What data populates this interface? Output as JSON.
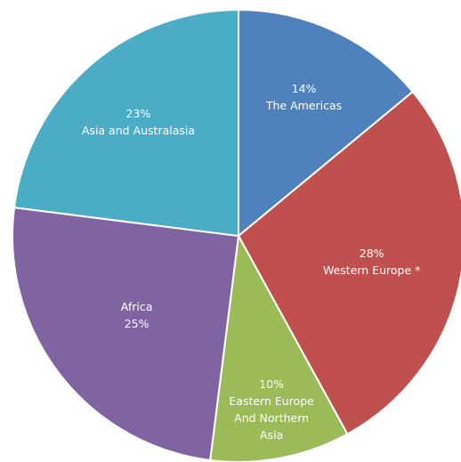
{
  "chart_data": {
    "type": "pie",
    "categories": [
      "The Americas",
      "Western Europe *",
      "Eastern Europe And Northern Asia",
      "Africa",
      "Asia and Australasia"
    ],
    "values": [
      14,
      28,
      10,
      25,
      23
    ],
    "value_labels": [
      "14%",
      "28%",
      "10%",
      "25%",
      "23%"
    ],
    "colors": [
      "#4f81bd",
      "#c0504d",
      "#9bbb59",
      "#8064a2",
      "#4bacc6"
    ]
  }
}
